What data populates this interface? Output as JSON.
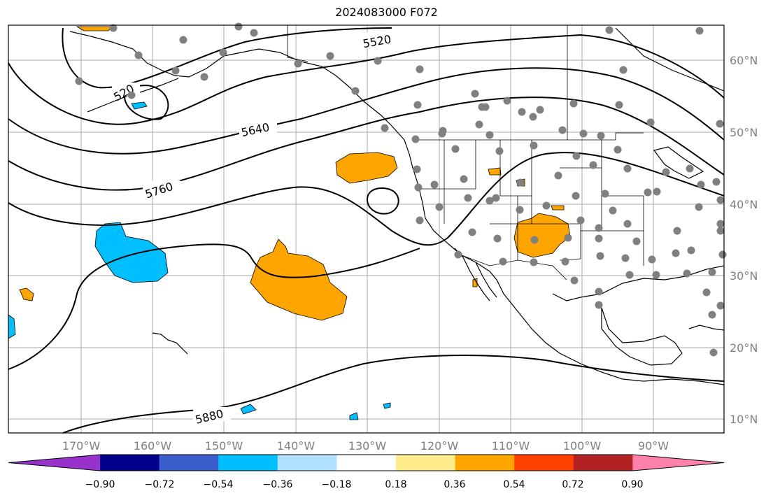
{
  "title": "2024083000 F072",
  "lat_labels": [
    "60°N",
    "50°N",
    "40°N",
    "30°N",
    "20°N",
    "10°N"
  ],
  "lon_labels": [
    "170°W",
    "160°W",
    "150°W",
    "140°W",
    "130°W",
    "120°W",
    "110°W",
    "100°W",
    "90°W"
  ],
  "contour_labels": [
    "5520",
    "520",
    "5640",
    "5760",
    "5880"
  ],
  "colorbar": {
    "ticks": [
      "−0.90",
      "−0.72",
      "−0.54",
      "−0.36",
      "−0.18",
      "0.18",
      "0.36",
      "0.54",
      "0.72",
      "0.90"
    ],
    "colors": [
      "#9932cc",
      "#00008b",
      "#3a5fcd",
      "#00bfff",
      "#b0e2ff",
      "#ffffff",
      "#ffec8b",
      "#ffa500",
      "#ff4000",
      "#b22222",
      "#ff82ab"
    ]
  }
}
